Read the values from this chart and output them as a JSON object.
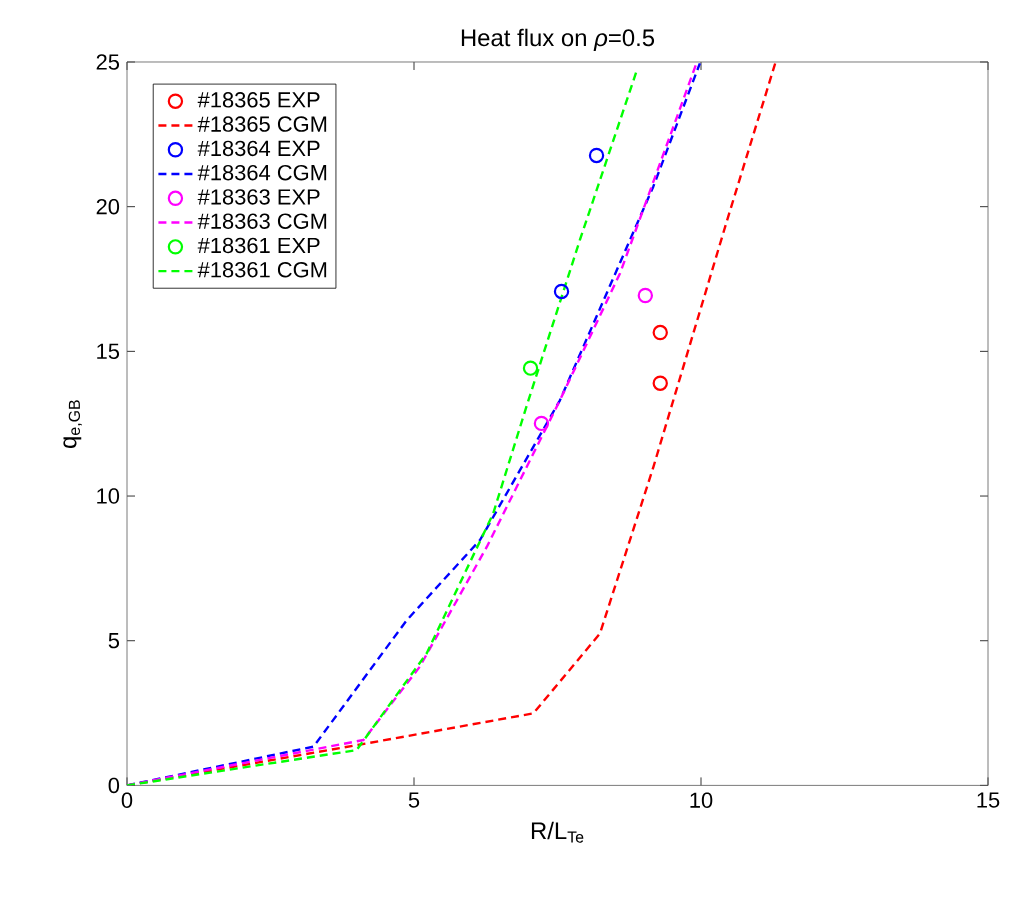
{
  "chart_data": {
    "type": "line",
    "title": "Heat flux on *ρ*=0.5",
    "xlabel": "R/L$_{Te}$",
    "ylabel": "q$_{e,GB}$",
    "xlim": [
      0,
      15
    ],
    "ylim": [
      0,
      25
    ],
    "xticks": [
      0,
      5,
      10,
      15
    ],
    "yticks": [
      0,
      5,
      10,
      15,
      20,
      25
    ],
    "grid": false,
    "legend": "top left",
    "series": [
      {
        "name": "#18365 EXP",
        "type": "scatter",
        "marker": "circle",
        "color": "#ff0000",
        "x": [
          9.29,
          9.29
        ],
        "values": [
          15.65,
          13.9
        ]
      },
      {
        "name": "#18365 CGM",
        "line_style": "dashed",
        "color": "#ff0000",
        "x": [
          0,
          4.17,
          7.08,
          8.24,
          9.17,
          10.45,
          11.3
        ],
        "values": [
          0,
          1.45,
          2.49,
          5.25,
          11.0,
          19.5,
          25
        ]
      },
      {
        "name": "#18364 EXP",
        "type": "scatter",
        "marker": "circle",
        "color": "#0000ff",
        "x": [
          8.18,
          7.57
        ],
        "values": [
          21.77,
          17.07
        ]
      },
      {
        "name": "#18364 CGM",
        "line_style": "dashed",
        "color": "#0000ff",
        "x": [
          0,
          3.25,
          4.87,
          6.15,
          7.54,
          9.17,
          9.98
        ],
        "values": [
          0,
          1.34,
          5.7,
          8.48,
          13.3,
          20.7,
          24.95
        ]
      },
      {
        "name": "#18363 EXP",
        "type": "scatter",
        "marker": "circle",
        "color": "#ff00ff",
        "x": [
          9.03,
          7.22
        ],
        "values": [
          16.93,
          12.51
        ]
      },
      {
        "name": "#18363 CGM",
        "line_style": "dashed",
        "color": "#ff00ff",
        "x": [
          0,
          4.12,
          5.1,
          6.27,
          7.54,
          8.59,
          9.92
        ],
        "values": [
          0,
          1.57,
          4.1,
          8.25,
          13.3,
          17.7,
          24.95
        ]
      },
      {
        "name": "#18361 EXP",
        "type": "scatter",
        "marker": "circle",
        "color": "#00ff00",
        "x": [
          7.03
        ],
        "values": [
          14.42
        ]
      },
      {
        "name": "#18361 CGM",
        "line_style": "dashed",
        "color": "#00ff00",
        "x": [
          0,
          4.0,
          5.22,
          6.38,
          6.96,
          7.89,
          8.88
        ],
        "values": [
          0,
          1.22,
          4.56,
          9.4,
          13.1,
          18.85,
          24.7
        ]
      }
    ]
  }
}
